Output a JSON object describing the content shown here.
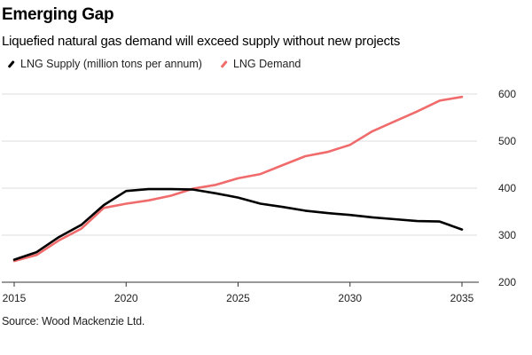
{
  "title": "Emerging Gap",
  "subtitle": "Liquefied natural gas demand will exceed supply without new projects",
  "source": "Source: Wood Mackenzie Ltd.",
  "legend": [
    {
      "label": "LNG Supply (million tons per annum)",
      "color": "#000000"
    },
    {
      "label": "LNG Demand",
      "color": "#f06b6b"
    }
  ],
  "chart_data": {
    "type": "line",
    "title": "Emerging Gap",
    "subtitle": "Liquefied natural gas demand will exceed supply without new projects",
    "xlabel": "",
    "ylabel": "million tons per annum",
    "x": [
      2015,
      2016,
      2017,
      2018,
      2019,
      2020,
      2021,
      2022,
      2023,
      2024,
      2025,
      2026,
      2027,
      2028,
      2029,
      2030,
      2031,
      2032,
      2033,
      2034,
      2035
    ],
    "series": [
      {
        "name": "LNG Supply (million tons per annum)",
        "color": "#000000",
        "values": [
          248,
          264,
          296,
          322,
          364,
          394,
          398,
          398,
          397,
          389,
          380,
          367,
          360,
          352,
          347,
          343,
          338,
          334,
          330,
          329,
          312
        ]
      },
      {
        "name": "LNG Demand",
        "color": "#f06b6b",
        "values": [
          245,
          258,
          289,
          314,
          358,
          367,
          374,
          384,
          399,
          407,
          421,
          430,
          449,
          468,
          477,
          492,
          521,
          542,
          563,
          586,
          594
        ]
      }
    ],
    "xlim": [
      2015,
      2035
    ],
    "ylim": [
      200,
      600
    ],
    "xticks": [
      2015,
      2020,
      2025,
      2030,
      2035
    ],
    "yticks": [
      200,
      300,
      400,
      500,
      600
    ],
    "y_axis_side": "right",
    "grid": true,
    "legend_position": "top-left"
  }
}
